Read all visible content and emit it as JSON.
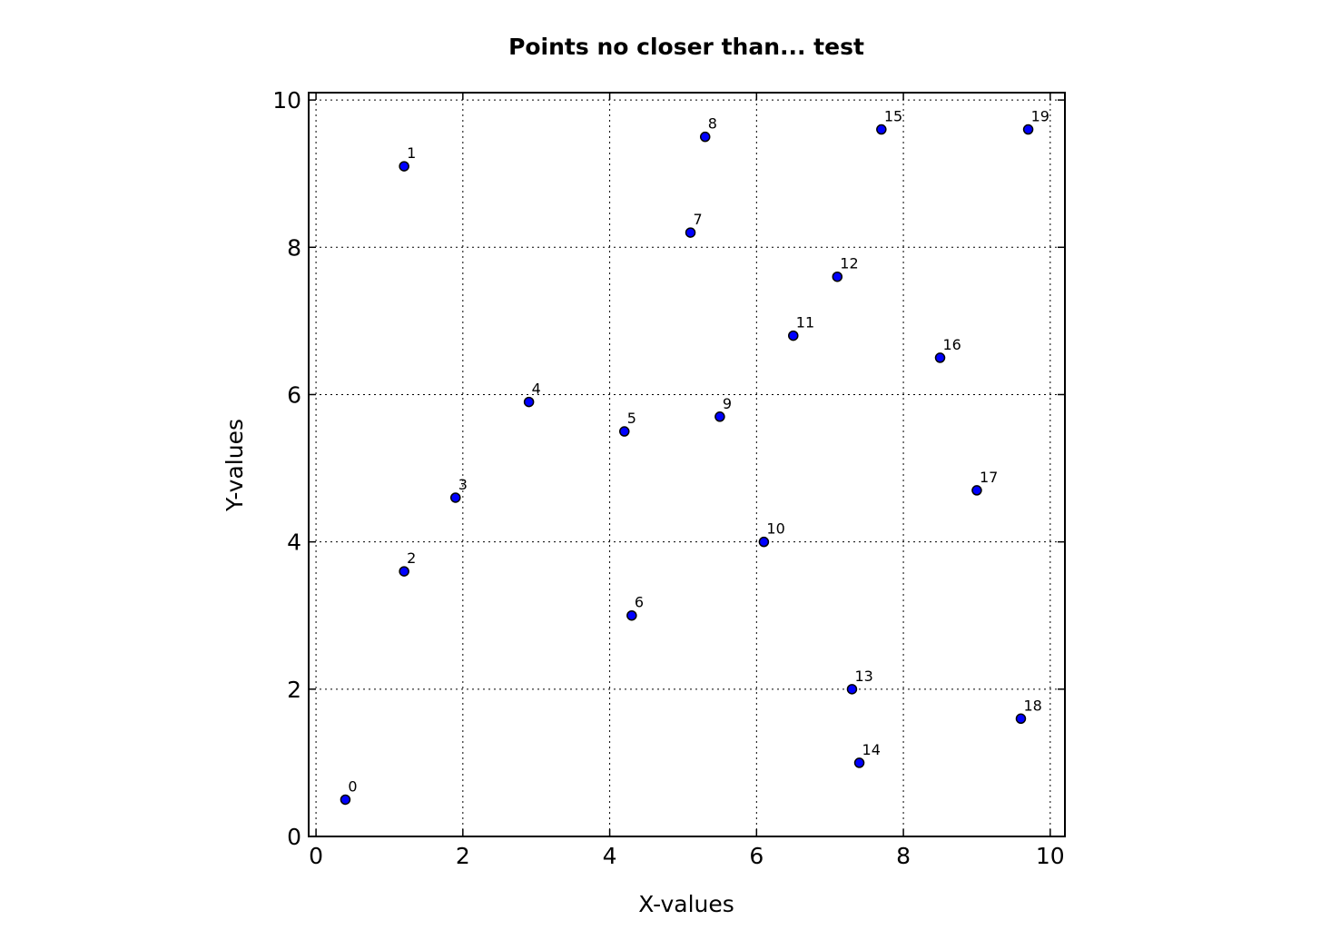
{
  "chart_data": {
    "type": "scatter",
    "title": "Points no closer than... test",
    "xlabel": "X-values",
    "ylabel": "Y-values",
    "xlim": [
      -0.1,
      10.2
    ],
    "ylim": [
      0,
      10.1
    ],
    "xticks": [
      "0",
      "2",
      "4",
      "6",
      "8",
      "10"
    ],
    "yticks": [
      "0",
      "2",
      "4",
      "6",
      "8",
      "10"
    ],
    "xtick_values": [
      0,
      2,
      4,
      6,
      8,
      10
    ],
    "ytick_values": [
      0,
      2,
      4,
      6,
      8,
      10
    ],
    "grid": true,
    "marker_color": "#0000ff",
    "marker_edge_color": "#000000",
    "points": [
      {
        "label": "0",
        "x": 0.4,
        "y": 0.5
      },
      {
        "label": "1",
        "x": 1.2,
        "y": 9.1
      },
      {
        "label": "2",
        "x": 1.2,
        "y": 3.6
      },
      {
        "label": "3",
        "x": 1.9,
        "y": 4.6
      },
      {
        "label": "4",
        "x": 2.9,
        "y": 5.9
      },
      {
        "label": "5",
        "x": 4.2,
        "y": 5.5
      },
      {
        "label": "6",
        "x": 4.3,
        "y": 3.0
      },
      {
        "label": "7",
        "x": 5.1,
        "y": 8.2
      },
      {
        "label": "8",
        "x": 5.3,
        "y": 9.5
      },
      {
        "label": "9",
        "x": 5.5,
        "y": 5.7
      },
      {
        "label": "10",
        "x": 6.1,
        "y": 4.0
      },
      {
        "label": "11",
        "x": 6.5,
        "y": 6.8
      },
      {
        "label": "12",
        "x": 7.1,
        "y": 7.6
      },
      {
        "label": "13",
        "x": 7.3,
        "y": 2.0
      },
      {
        "label": "14",
        "x": 7.4,
        "y": 1.0
      },
      {
        "label": "15",
        "x": 7.7,
        "y": 9.6
      },
      {
        "label": "16",
        "x": 8.5,
        "y": 6.5
      },
      {
        "label": "17",
        "x": 9.0,
        "y": 4.7
      },
      {
        "label": "18",
        "x": 9.6,
        "y": 1.6
      },
      {
        "label": "19",
        "x": 9.7,
        "y": 9.6
      }
    ]
  }
}
